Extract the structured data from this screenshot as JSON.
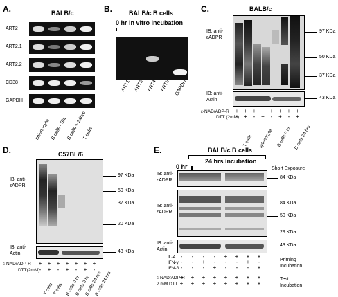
{
  "panels": {
    "A": {
      "letter": "A.",
      "title": "BALB/c",
      "rows": [
        "ART2",
        "ART2.1",
        "ART2.2",
        "CD38",
        "GAPDH"
      ],
      "lanes": [
        "splenocyte",
        "B cells - 0hr",
        "B cells + 24hrs",
        "T cells"
      ]
    },
    "B": {
      "letter": "B.",
      "title_line1": "BALB/c B cells",
      "title_line2": "0 hr in vitro incubation",
      "lanes": [
        "ART1",
        "ART3",
        "ART4",
        "ART5",
        "GAPDH"
      ]
    },
    "C": {
      "letter": "C.",
      "title": "BALB/c",
      "ib_top": [
        "IB: anti-",
        "εADPR"
      ],
      "ib_bottom": [
        "IB: anti-",
        "Actin"
      ],
      "markers": [
        "97 KDa",
        "50 KDa",
        "37 KDa"
      ],
      "actin_marker": "43 KDa",
      "treat_label": "ε-NAD/ADP-R",
      "treat_row": [
        "+",
        "+",
        "+",
        "+",
        "+",
        "+",
        "+",
        "+"
      ],
      "dtt_label": "DTT (2mM)",
      "dtt_row": [
        "-",
        "+",
        "-",
        "+",
        "-",
        "+",
        "-",
        "+"
      ],
      "lanes": [
        "T cells",
        "splenocyte",
        "B cells 0 hr",
        "B cells 24 hrs"
      ]
    },
    "D": {
      "letter": "D.",
      "title": "C57BL/6",
      "ib_top": [
        "IB: anti-",
        "εADPR"
      ],
      "ib_bottom": [
        "IB: anti-",
        "Actin"
      ],
      "markers": [
        "97 KDa",
        "50 KDa",
        "37 KDa",
        "20 KDa"
      ],
      "actin_marker": "43 KDa",
      "treat_label": "ε-NAD/ADP-R",
      "treat_row": [
        "+",
        "+",
        "+",
        "+",
        "+",
        "+",
        "+"
      ],
      "dtt_label": "DTT(2mM)",
      "dtt_row": [
        "-",
        "+",
        "-",
        "+",
        "-",
        "+",
        "-"
      ],
      "lanes": [
        "T cells",
        "T cells",
        "B cells 0 hr",
        "B cells 0 hr",
        "B cells 24 hrs",
        "B cells 24 hrs"
      ]
    },
    "E": {
      "letter": "E.",
      "title": "BALB/c B cells",
      "time0": "0 hr",
      "time24": "24 hrs incubation",
      "exposure": "Short Exposure",
      "ib_top": [
        "IB: anti-",
        "εADPR"
      ],
      "ib_mid": [
        "IB: anti-",
        "εADPR"
      ],
      "ib_bottom": [
        "IB: anti-",
        "Actin"
      ],
      "marker_top": "84 KDa",
      "markers_mid": [
        "84 KDa",
        "50 KDa",
        "29 KDa"
      ],
      "actin_marker": "43 KDa",
      "il4_label": "IL-4",
      "ifng_label": "IFN-γ",
      "ifnb_label": "IFN-β",
      "il4_row": [
        "-",
        "-",
        "-",
        "-",
        "+",
        "+",
        "+",
        "+"
      ],
      "ifng_row": [
        "-",
        "-",
        "+",
        "-",
        "-",
        "-",
        "+",
        "-"
      ],
      "ifnb_row": [
        "-",
        "-",
        "-",
        "+",
        "-",
        "-",
        "-",
        "+"
      ],
      "priming": [
        "Priming",
        "Incubation"
      ],
      "enad_label": "ε-NAD/ADP-R",
      "enad_row": [
        "+",
        "+",
        "+",
        "+",
        "+",
        "+",
        "+",
        "+"
      ],
      "dtt_label": "2 mM DTT",
      "dtt_row": [
        "+",
        "+",
        "+",
        "+",
        "+",
        "+",
        "+",
        "+"
      ],
      "test": [
        "Test",
        "Incubation"
      ]
    }
  }
}
